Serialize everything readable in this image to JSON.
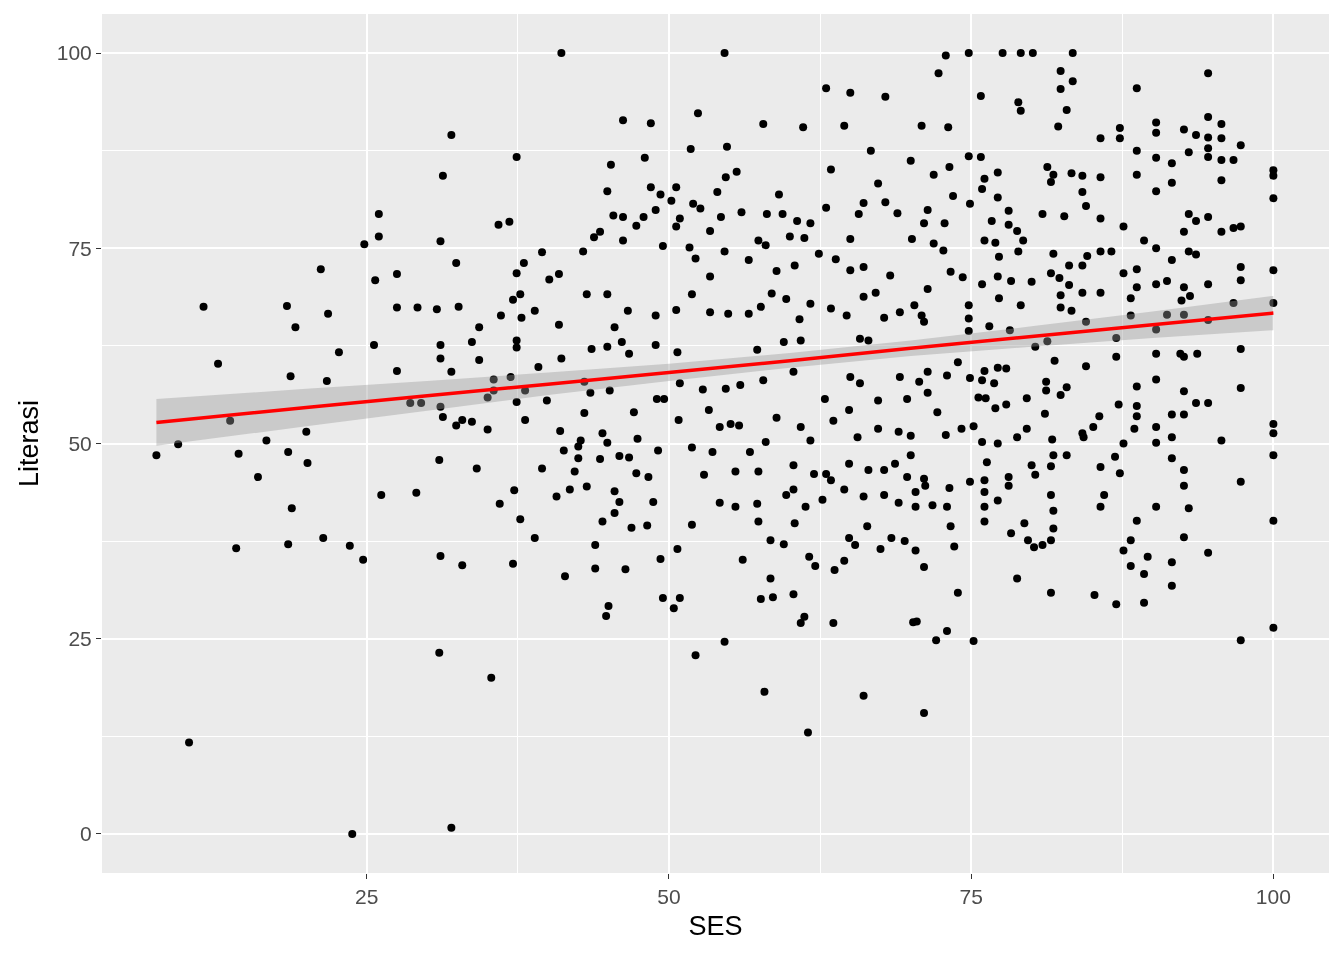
{
  "chart_data": {
    "type": "scatter",
    "xlabel": "SES",
    "ylabel": "Literasi",
    "xlim": [
      3.1,
      104.6
    ],
    "ylim": [
      -5,
      105
    ],
    "xticks": [
      25,
      50,
      75,
      100
    ],
    "yticks": [
      0,
      25,
      50,
      75,
      100
    ],
    "grid": true,
    "series": [
      {
        "color": "#000000",
        "marker": "circle",
        "x": [
          7.6,
          9.4,
          10.3,
          11.5,
          12.7,
          13.7,
          14.2,
          14.4,
          16.0,
          16.7,
          18.4,
          19.1,
          18.7,
          18.5,
          18.8,
          18.5,
          20.1,
          21.2,
          21.8,
          22.7,
          21.7,
          20.0,
          21.4,
          23.8,
          23.6,
          24.7,
          24.8,
          26.0,
          26.0,
          25.7,
          25.6,
          27.5,
          27.5,
          27.5,
          26.2,
          29.1,
          29.2,
          28.6,
          30.8,
          31.3,
          32.0,
          31.1,
          32.4,
          32.6,
          31.1,
          31.0,
          32.0,
          35.3,
          31.1,
          32.9,
          37.1,
          31.0,
          34.1,
          36.0,
          35.9,
          36.8,
          34.3,
          33.7,
          33.7,
          35.0,
          29.5,
          31.1,
          31.3,
          32.4,
          32.9,
          35.0,
          35.5,
          35.5,
          36.1,
          34.3,
          36.9,
          32.0,
          31.1,
          41.1,
          54.6,
          37.4,
          46.2,
          48.5,
          52.4,
          57.8,
          63.0,
          65.0,
          67.9,
          61.1,
          64.5,
          70.9,
          45.2,
          48.0,
          51.8,
          54.8,
          55.6,
          44.9,
          48.5,
          50.6,
          59.1,
          66.7,
          70.0,
          63.4,
          67.3,
          71.4,
          39.5,
          37.4,
          38.0,
          40.1,
          40.9,
          37.7,
          37.1,
          37.8,
          38.9,
          40.9,
          37.4,
          37.4,
          39.2,
          41.1,
          38.1,
          37.4,
          38.1,
          39.9,
          41.0,
          43.5,
          43.0,
          44.5,
          47.1,
          44.9,
          42.9,
          43.8,
          44.3,
          45.4,
          46.2,
          46.2,
          47.3,
          47.9,
          48.9,
          49.3,
          50.2,
          50.6,
          50.9,
          51.7,
          52.2,
          49.5,
          52.0,
          52.6,
          54.0,
          54.3,
          54.7,
          56.0,
          53.4,
          54.6,
          56.6,
          58.1,
          59.4,
          57.4,
          58.0,
          60.0,
          60.6,
          61.2,
          61.7,
          63.0,
          65.0,
          65.7,
          66.1,
          68.9,
          67.9,
          70.1,
          71.1,
          62.4,
          63.8,
          53.4,
          58.9,
          60.4,
          65.0,
          66.1,
          68.3,
          43.2,
          44.9,
          46.6,
          48.9,
          50.6,
          51.9,
          53.4,
          54.9,
          56.6,
          57.6,
          58.5,
          59.7,
          60.8,
          61.7,
          63.4,
          64.7,
          66.1,
          67.1,
          67.8,
          69.1,
          71.1,
          43.6,
          46.7,
          50.7,
          57.3,
          59.5,
          60.9,
          65.8,
          66.5,
          50.9,
          52.8,
          54.7,
          55.9,
          57.8,
          60.3,
          65.0,
          65.8,
          69.1,
          70.7,
          62.9,
          67.3,
          69.7,
          53.3,
          55.1,
          55.8,
          58.9,
          60.9,
          63.6,
          64.9,
          67.3,
          69.0,
          70.0,
          42.7,
          47.4,
          50.8,
          54.2,
          58.0,
          61.7,
          65.6,
          44.9,
          46.1,
          48.9,
          43.0,
          45.1,
          45.5,
          49.0,
          49.6,
          39.5,
          40.7,
          41.4,
          37.2,
          37.7,
          38.9,
          43.2,
          43.9,
          43.9,
          44.5,
          44.8,
          45.0,
          45.5,
          46.4,
          46.9,
          48.2,
          48.7,
          49.3,
          49.5,
          50.4,
          50.9,
          50.7,
          52.2,
          51.9,
          52.9,
          54.6,
          54.2,
          55.5,
          56.1,
          57.3,
          57.4,
          57.6,
          57.9,
          58.4,
          58.6,
          58.4,
          59.5,
          59.7,
          60.3,
          60.4,
          60.9,
          61.2,
          61.5,
          61.6,
          62.1,
          61.3,
          62.7,
          63.6,
          63.7,
          64.5,
          64.9,
          65.4,
          66.1,
          67.5,
          68.4,
          69.5,
          70.2,
          70.4,
          71.1,
          71.1,
          66.4,
          69.0,
          41.3,
          42.5,
          42.5,
          44.3,
          45.9,
          46.7,
          47.3,
          48.3,
          49.1,
          51.9,
          53.6,
          55.5,
          56.7,
          57.4,
          60.3,
          60.3,
          62.0,
          63.0,
          63.4,
          64.5,
          64.9,
          66.1,
          66.5,
          67.8,
          67.8,
          68.7,
          69.7,
          70.0,
          70.4,
          71.1,
          45.9,
          45.5,
          41.8,
          42.2,
          72.9,
          74.8,
          77.6,
          79.1,
          80.1,
          83.4,
          72.3,
          82.4,
          83.4,
          82.4,
          94.6,
          88.7,
          75.8,
          78.9,
          79.1,
          82.9,
          82.2,
          73.1,
          85.7,
          87.3,
          87.3,
          90.3,
          90.3,
          92.6,
          93.6,
          94.6,
          94.6,
          95.7,
          95.7,
          97.3,
          94.6,
          94.6,
          95.7,
          96.7,
          93.0,
          88.7,
          90.3,
          91.6,
          100,
          100,
          100,
          95.7,
          91.6,
          90.3,
          88.7,
          85.7,
          84.2,
          83.3,
          81.3,
          81.8,
          81.6,
          84.2,
          84.5,
          74.8,
          75.8,
          71.9,
          73.2,
          73.5,
          76.1,
          77.2,
          75.9,
          74.9,
          77.2,
          78.1,
          80.9,
          82.7,
          85.7,
          72.8,
          76.7,
          78.1,
          78.8,
          87.6,
          93.0,
          93.6,
          94.6,
          96.7,
          97.3,
          95.7,
          92.6,
          89.3,
          90.3,
          91.6,
          93.0,
          93.6,
          100,
          97.3,
          97.3,
          94.6,
          91.2,
          90.3,
          92.6,
          93.1,
          92.4,
          88.7,
          88.7,
          87.6,
          88.2,
          85.7,
          86.6,
          84.6,
          84.2,
          83.1,
          84.2,
          85.7,
          81.8,
          81.6,
          82.3,
          83.1,
          82.4,
          82.4,
          83.3,
          80.0,
          78.3,
          77.2,
          75.9,
          77.3,
          79.1,
          77.3,
          78.9,
          77.0,
          76.1,
          79.3,
          74.8,
          74.8,
          74.8,
          76.5,
          74.3,
          73.3,
          71.4,
          70.3,
          70.9,
          72.7,
          71.9,
          97.3,
          100,
          96.7,
          92.6,
          94.6,
          91.2,
          90.3,
          88.2,
          87.0,
          87.0,
          84.5,
          84.5,
          81.9,
          80.3,
          81.3,
          78.2,
          90.3,
          92.3,
          93.7,
          92.6,
          97.3,
          90.3,
          88.7,
          92.6,
          93.6,
          94.6,
          88.7,
          88.7,
          87.2,
          85.6,
          85.1,
          91.6,
          92.6,
          90.3,
          91.6,
          100,
          100,
          95.7,
          88.5,
          84.2,
          82.9,
          82.4,
          81.2,
          81.2,
          81.1,
          79.6,
          77.9,
          77.0,
          76.2,
          75.6,
          74.9,
          75.9,
          76.1,
          76.9,
          77.2,
          77.9,
          73.9,
          71.4,
          73.0,
          71.4,
          72.2,
          72.9,
          74.2,
          75.2,
          75.9,
          79.6,
          81.7,
          78.8,
          77.2,
          84.3,
          87.6,
          90.3,
          100,
          100,
          100,
          97.3,
          97.3,
          94.6,
          93.0,
          92.6,
          92.6,
          92.6,
          91.6,
          91.6,
          91.6,
          90.3,
          89.6,
          89.3,
          89.3,
          88.7,
          88.2,
          88.2,
          87.6,
          87.0,
          87.3,
          86.9,
          85.7,
          86.0,
          85.7,
          85.2,
          81.6,
          81.6,
          81.8,
          81.8,
          81.6,
          80.9,
          80.2,
          79.7,
          79.4,
          78.3,
          78.8,
          82.9,
          81.8,
          81.6,
          80.3,
          80.0,
          78.1,
          78.1,
          77.2,
          76.3,
          76.1,
          76.1,
          76.1,
          76.1,
          75.2,
          74.9,
          73.9,
          73.6,
          73.3,
          73.2,
          73.0,
          73.0,
          72.1,
          71.8,
          71.2,
          70.5,
          70.4
        ],
        "values": [
          48.5,
          49.9,
          11.7,
          67.5,
          60.2,
          52.9,
          36.6,
          48.7,
          45.7,
          50.4,
          67.6,
          64.9,
          58.6,
          48.9,
          41.7,
          37.1,
          47.5,
          72.3,
          66.6,
          61.7,
          58.0,
          51.5,
          37.9,
          0.0,
          36.9,
          35.1,
          75.5,
          79.4,
          76.5,
          70.9,
          62.6,
          71.7,
          67.4,
          59.3,
          43.4,
          43.7,
          67.4,
          55.2,
          67.2,
          84.3,
          89.5,
          75.9,
          73.1,
          67.5,
          60.9,
          23.2,
          0.8,
          20.0,
          35.6,
          34.4,
          34.6,
          47.9,
          46.8,
          42.3,
          78.0,
          78.4,
          64.9,
          63.0,
          52.8,
          51.8,
          55.2,
          54.7,
          53.4,
          52.3,
          53.0,
          55.9,
          58.2,
          56.8,
          66.4,
          60.7,
          58.5,
          59.2,
          62.6,
          100,
          100,
          86.7,
          91.4,
          91.0,
          92.3,
          90.9,
          95.5,
          94.9,
          94.4,
          90.5,
          90.7,
          90.7,
          85.7,
          86.6,
          87.7,
          88.0,
          84.8,
          82.3,
          82.8,
          82.8,
          81.9,
          87.5,
          86.2,
          85.1,
          83.3,
          79.9,
          74.5,
          71.8,
          73.1,
          71.0,
          71.7,
          69.1,
          68.4,
          66.1,
          67.0,
          65.2,
          63.2,
          62.3,
          59.8,
          60.9,
          56.8,
          55.3,
          53.0,
          55.5,
          51.6,
          56.5,
          53.9,
          51.3,
          54.0,
          50.1,
          74.6,
          76.4,
          77.1,
          79.2,
          79.0,
          76.0,
          77.9,
          79.0,
          79.9,
          81.9,
          81.1,
          77.8,
          78.8,
          75.1,
          73.7,
          75.3,
          80.7,
          80.1,
          82.2,
          79.0,
          84.1,
          79.6,
          77.2,
          74.6,
          73.5,
          79.4,
          79.4,
          76.0,
          75.4,
          76.5,
          78.5,
          76.3,
          78.2,
          80.2,
          76.2,
          79.4,
          80.8,
          79.5,
          80.9,
          76.2,
          78.2,
          74.3,
          73.6,
          71.4,
          72.1,
          72.8,
          72.2,
          72.6,
          71.5,
          69.1,
          69.1,
          67.0,
          66.4,
          67.1,
          69.1,
          66.8,
          66.6,
          66.6,
          67.5,
          69.2,
          68.5,
          65.9,
          67.9,
          67.3,
          66.4,
          68.8,
          69.3,
          66.1,
          66.8,
          65.6,
          62.1,
          61.5,
          61.7,
          62.0,
          63.0,
          63.2,
          63.4,
          63.2,
          57.7,
          56.9,
          57.0,
          57.5,
          58.1,
          59.2,
          58.5,
          57.7,
          58.5,
          57.9,
          55.7,
          55.5,
          55.7,
          54.3,
          52.5,
          52.3,
          53.3,
          52.1,
          52.9,
          54.3,
          51.9,
          51.5,
          51.0,
          50.4,
          50.6,
          53.0,
          52.1,
          50.2,
          50.4,
          50.8,
          62.4,
          63.0,
          62.6,
          57.9,
          56.8,
          64.9,
          55.7,
          55.7,
          46.8,
          43.2,
          33.0,
          44.0,
          40.3,
          37.9,
          44.5,
          37.0,
          34.0,
          40.0,
          27.9,
          29.2,
          41.1,
          33.9,
          39.2,
          39.5,
          42.5,
          35.2,
          30.2,
          28.9,
          30.2,
          36.5,
          22.9,
          39.6,
          46.0,
          24.6,
          42.4,
          41.9,
          35.1,
          42.3,
          40.0,
          30.1,
          18.2,
          32.7,
          30.3,
          37.6,
          37.1,
          43.4,
          30.7,
          39.8,
          27.0,
          27.8,
          13.0,
          35.5,
          34.3,
          41.9,
          42.8,
          27.0,
          33.8,
          35.0,
          37.9,
          37.0,
          17.7,
          36.5,
          37.9,
          37.5,
          27.1,
          36.3,
          34.2,
          15.5,
          39.4,
          42.4,
          49.1,
          49.6,
          48.1,
          48.0,
          48.4,
          48.2,
          46.2,
          45.7,
          49.1,
          49.5,
          48.9,
          46.4,
          48.9,
          46.4,
          47.2,
          44.1,
          46.1,
          46.1,
          45.3,
          44.1,
          47.4,
          43.2,
          46.6,
          46.6,
          43.4,
          47.4,
          45.7,
          48.5,
          43.8,
          45.5,
          42.5,
          43.9,
          44.1,
          46.4,
          99.7,
          100,
          100,
          100,
          100,
          100,
          97.4,
          97.7,
          96.4,
          95.4,
          97.4,
          95.5,
          94.5,
          93.7,
          92.6,
          92.7,
          90.6,
          90.5,
          89.1,
          90.4,
          89.1,
          91.1,
          89.8,
          90.2,
          89.5,
          91.8,
          89.2,
          90.9,
          89.1,
          88.2,
          87.8,
          86.7,
          86.3,
          86.3,
          87.3,
          87.5,
          86.6,
          85.9,
          85.0,
          84.3,
          81.4,
          83.7,
          83.4,
          82.3,
          84.4,
          84.1,
          84.3,
          84.6,
          85.4,
          84.4,
          83.5,
          82.2,
          80.4,
          86.8,
          86.7,
          84.4,
          85.4,
          81.7,
          83.9,
          84.7,
          82.6,
          80.7,
          81.5,
          79.8,
          79.4,
          79.1,
          78.8,
          78.2,
          78.5,
          78.0,
          77.2,
          77.8,
          79.4,
          78.5,
          79.0,
          77.6,
          77.8,
          77.1,
          77.1,
          76.0,
          75.0,
          73.5,
          74.6,
          74.2,
          72.2,
          72.6,
          70.9,
          70.4,
          70.8,
          70.4,
          70.0,
          68.9,
          68.3,
          72.3,
          70.0,
          71.8,
          68.6,
          74.6,
          74.6,
          74.0,
          72.8,
          72.8,
          69.3,
          69.3,
          74.3,
          71.8,
          71.2,
          70.3,
          69.0,
          67.4,
          67.0,
          70.7,
          70.8,
          71.4,
          70.4,
          68.6,
          67.7,
          73.9,
          74.6,
          75.7,
          76.0,
          76.0,
          67.7,
          66.0,
          64.4,
          65.0,
          71.3,
          72.0,
          69.8,
          67.7,
          66.4,
          74.7,
          75.6,
          62.1,
          68.0,
          68.0,
          66.5,
          65.8,
          66.5,
          64.6,
          66.4,
          63.5,
          61.1,
          59.9,
          65.6,
          60.6,
          62.4,
          63.1,
          64.5,
          61.5,
          61.5,
          61.5,
          61.1,
          57.1,
          58.2,
          57.3,
          56.7,
          55.2,
          55.2,
          54.8,
          53.5,
          55.0,
          53.5,
          52.1,
          53.7,
          53.7,
          52.1,
          50.8,
          52.5,
          51.3,
          50.4,
          51.9,
          51.3,
          57.2,
          56.2,
          57.9,
          56.8,
          53.8,
          55.8,
          55.0,
          54.5,
          55.8,
          55.9,
          58.4,
          58.1,
          59.3,
          57.7,
          59.7,
          59.6,
          60.4,
          59.2,
          58.7,
          56.5,
          54.0,
          51.1,
          51.9,
          52.2,
          50.2,
          51.9,
          50.5,
          50.8,
          50.0,
          50.8,
          50.0,
          50.1,
          48.5,
          40.1,
          26.4,
          45.1,
          24.8,
          36.0,
          41.7,
          44.6,
          46.6,
          38.0,
          48.1,
          34.8,
          31.8,
          41.9,
          35.5,
          33.3,
          29.6,
          40.1,
          37.6,
          34.3,
          36.3,
          29.4,
          46.2,
          48.3,
          47.0,
          43.4,
          41.9,
          30.6,
          30.9,
          43.4,
          41.4,
          39.1,
          37.6,
          37.0,
          36.7,
          37.6,
          39.8,
          38.5,
          32.7,
          48.5,
          48.5,
          47.1,
          46.0,
          47.2,
          44.6,
          45.7,
          42.7,
          47.6,
          45.3,
          43.8,
          41.9,
          40.0,
          24.7,
          45.1,
          30.9,
          36.8,
          39.4,
          44.3,
          26.0,
          41.9,
          24.8,
          42.1,
          44.6,
          27.2,
          41.9
        ]
      },
      {
        "type": "line",
        "color": "#ff0000",
        "x": [
          7.6,
          20,
          30,
          40,
          50,
          60,
          70,
          80,
          90,
          100
        ],
        "values": [
          52.7,
          54.6,
          56.1,
          57.6,
          59.1,
          60.6,
          62.2,
          63.7,
          65.2,
          66.7
        ],
        "lower": [
          49.7,
          52.2,
          54.2,
          56.2,
          58.0,
          59.7,
          61.2,
          62.4,
          63.5,
          64.5
        ],
        "upper": [
          55.7,
          57.0,
          58.0,
          59.1,
          60.2,
          61.6,
          63.2,
          65.0,
          66.9,
          68.9
        ]
      }
    ]
  }
}
